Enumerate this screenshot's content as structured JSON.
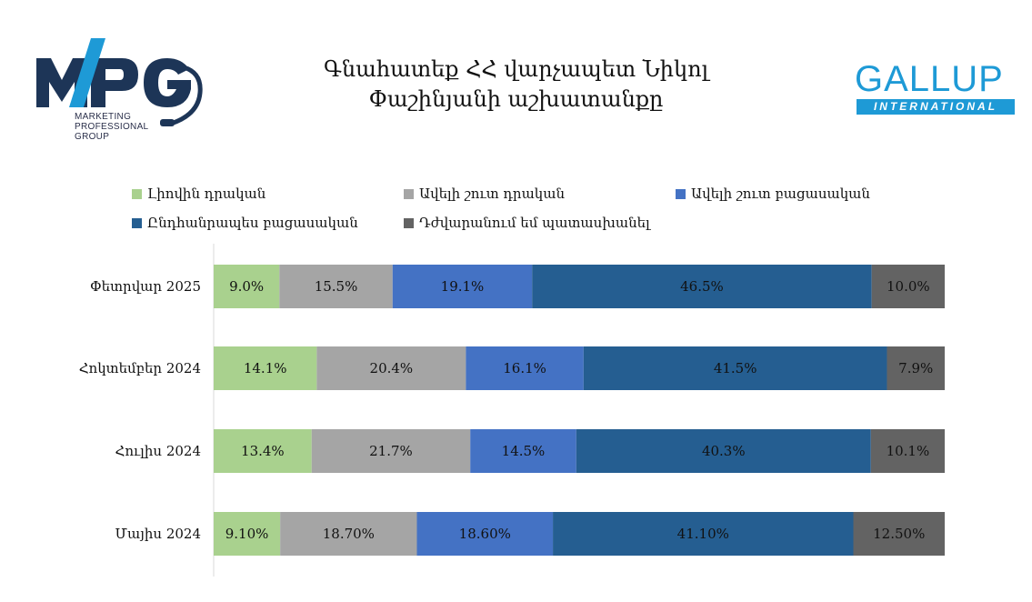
{
  "header": {
    "title_line1": "Գնահատեք ՀՀ վարչապետ Նիկոլ",
    "title_line2": "Փաշինյանի աշխատանքը"
  },
  "logos": {
    "mpg": {
      "mark": "MPG",
      "line1": "MARKETING",
      "line2": "PROFESSIONAL",
      "line3": "GROUP",
      "colors": {
        "dark": "#1d3557",
        "accent": "#1e9ad6"
      }
    },
    "gallup": {
      "word": "GALLUP",
      "sub": "INTERNATIONAL",
      "color": "#1e9ad6"
    }
  },
  "chart_data": {
    "type": "bar",
    "orientation": "horizontal",
    "stacked": "100%",
    "categories": [
      "Փետրվար 2025",
      "Հոկտեմբեր 2024",
      "Հուլիս 2024",
      "Մայիս 2024"
    ],
    "series": [
      {
        "name": "Լիովին դրական",
        "color": "#a9d18e",
        "values": [
          9.0,
          14.1,
          13.4,
          9.1
        ],
        "labels": [
          "9.0%",
          "14.1%",
          "13.4%",
          "9.10%"
        ]
      },
      {
        "name": "Ավելի շուտ դրական",
        "color": "#a5a5a5",
        "values": [
          15.5,
          20.4,
          21.7,
          18.7
        ],
        "labels": [
          "15.5%",
          "20.4%",
          "21.7%",
          "18.70%"
        ]
      },
      {
        "name": "Ավելի շուտ բացասական",
        "color": "#4472c4",
        "values": [
          19.1,
          16.1,
          14.5,
          18.6
        ],
        "labels": [
          "19.1%",
          "16.1%",
          "14.5%",
          "18.60%"
        ]
      },
      {
        "name": "Ընդհանրապես բացասական",
        "color": "#255e91",
        "values": [
          46.5,
          41.5,
          40.3,
          41.1
        ],
        "labels": [
          "46.5%",
          "41.5%",
          "40.3%",
          "41.10%"
        ]
      },
      {
        "name": "Դժվարանում եմ պատասխանել",
        "color": "#636363",
        "values": [
          10.0,
          7.9,
          10.1,
          12.5
        ],
        "labels": [
          "10.0%",
          "7.9%",
          "10.1%",
          "12.50%"
        ]
      }
    ],
    "legend_position": "top",
    "grid": false,
    "xlim": [
      0,
      100
    ]
  }
}
